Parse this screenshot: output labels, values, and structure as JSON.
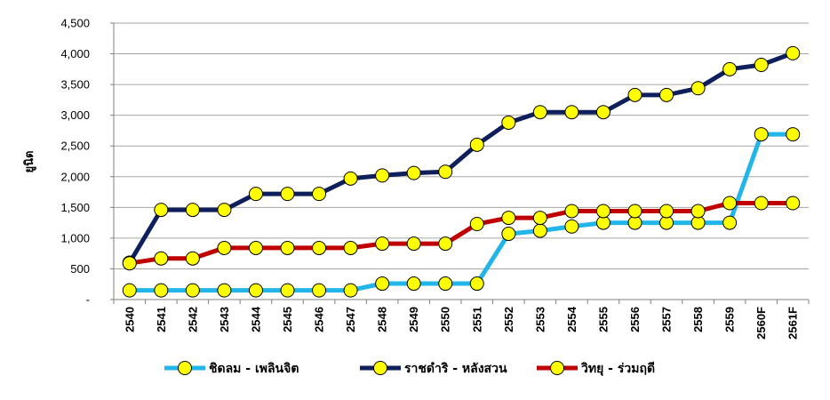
{
  "chart_data": {
    "type": "line",
    "title": "",
    "xlabel": "",
    "ylabel": "ยูนิต",
    "ylim": [
      0,
      4500
    ],
    "yticks": [
      {
        "value": 0,
        "label": "-"
      },
      {
        "value": 500,
        "label": "500"
      },
      {
        "value": 1000,
        "label": "1,000"
      },
      {
        "value": 1500,
        "label": "1,500"
      },
      {
        "value": 2000,
        "label": "2,000"
      },
      {
        "value": 2500,
        "label": "2,500"
      },
      {
        "value": 3000,
        "label": "3,000"
      },
      {
        "value": 3500,
        "label": "3,500"
      },
      {
        "value": 4000,
        "label": "4,000"
      },
      {
        "value": 4500,
        "label": "4,500"
      }
    ],
    "grid": "horizontal",
    "legend_position": "bottom",
    "categories": [
      "2540",
      "2541",
      "2542",
      "2543",
      "2544",
      "2545",
      "2546",
      "2547",
      "2548",
      "2549",
      "2550",
      "2551",
      "2552",
      "2553",
      "2554",
      "2555",
      "2556",
      "2557",
      "2558",
      "2559",
      "2560F",
      "2561F"
    ],
    "marker_fill": "#ffff00",
    "series": [
      {
        "name": "ชิดลม - เพลินจิต",
        "color": "#22b5ea",
        "values": [
          150,
          150,
          150,
          150,
          150,
          150,
          150,
          150,
          260,
          260,
          260,
          260,
          1070,
          1120,
          1190,
          1250,
          1250,
          1250,
          1250,
          1250,
          2690,
          2690
        ]
      },
      {
        "name": "ราชดำริ - หลังสวน",
        "color": "#0f1f5c",
        "values": [
          600,
          1460,
          1460,
          1460,
          1720,
          1720,
          1720,
          1970,
          2020,
          2060,
          2080,
          2520,
          2880,
          3050,
          3050,
          3050,
          3330,
          3330,
          3440,
          3750,
          3820,
          4010
        ]
      },
      {
        "name": "วิทยุ - ร่วมฤดี",
        "color": "#c00000",
        "values": [
          590,
          670,
          670,
          840,
          840,
          840,
          840,
          840,
          910,
          910,
          910,
          1230,
          1330,
          1330,
          1440,
          1440,
          1440,
          1440,
          1440,
          1570,
          1570,
          1570
        ]
      }
    ]
  }
}
